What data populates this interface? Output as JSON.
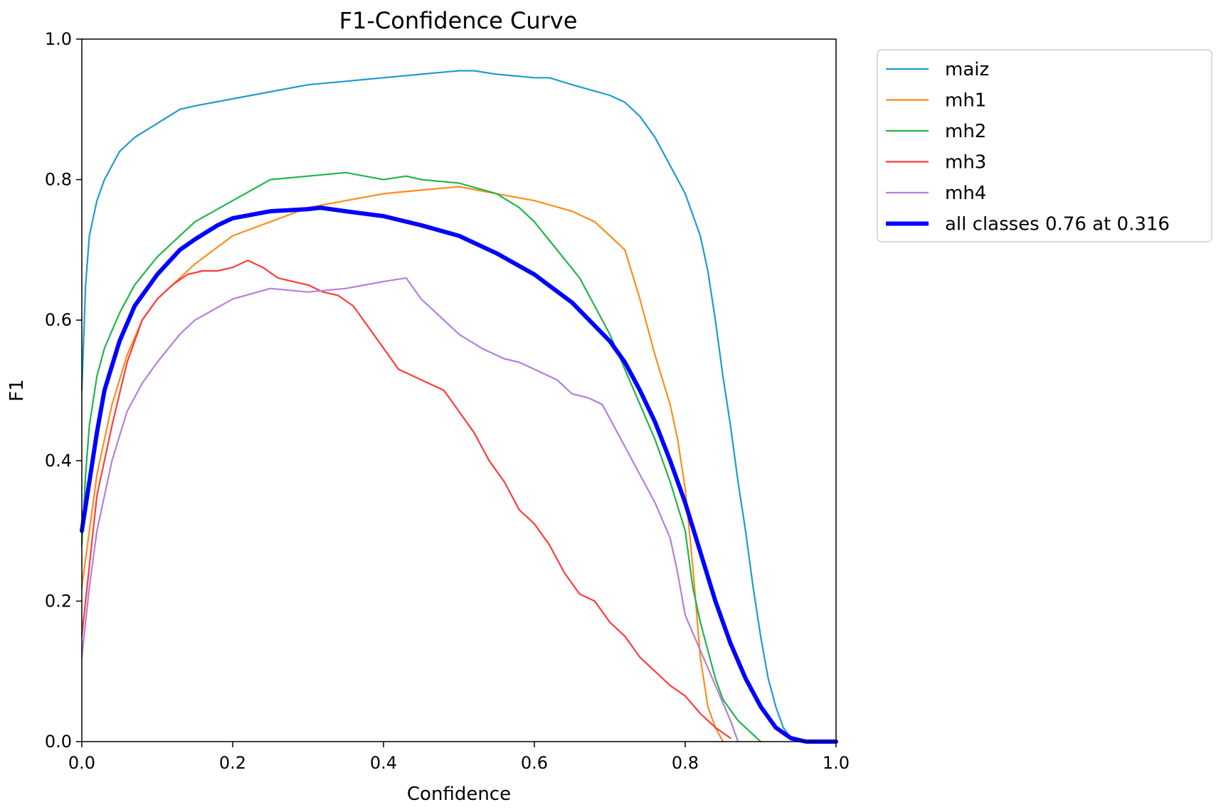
{
  "chart_data": {
    "type": "line",
    "title": "F1-Confidence Curve",
    "xlabel": "Confidence",
    "ylabel": "F1",
    "xlim": [
      0.0,
      1.0
    ],
    "ylim": [
      0.0,
      1.0
    ],
    "xticks": [
      "0.0",
      "0.2",
      "0.4",
      "0.6",
      "0.8",
      "1.0"
    ],
    "yticks": [
      "0.0",
      "0.2",
      "0.4",
      "0.6",
      "0.8",
      "1.0"
    ],
    "grid": false,
    "legend_position": "outside-top-right",
    "series": [
      {
        "name": "maiz",
        "color": "#1f9bd0",
        "width": "thin",
        "points": [
          [
            0.0,
            0.5
          ],
          [
            0.005,
            0.65
          ],
          [
            0.01,
            0.72
          ],
          [
            0.02,
            0.77
          ],
          [
            0.03,
            0.8
          ],
          [
            0.05,
            0.84
          ],
          [
            0.07,
            0.86
          ],
          [
            0.1,
            0.88
          ],
          [
            0.13,
            0.9
          ],
          [
            0.15,
            0.905
          ],
          [
            0.2,
            0.915
          ],
          [
            0.25,
            0.925
          ],
          [
            0.3,
            0.935
          ],
          [
            0.35,
            0.94
          ],
          [
            0.4,
            0.945
          ],
          [
            0.45,
            0.95
          ],
          [
            0.5,
            0.955
          ],
          [
            0.52,
            0.955
          ],
          [
            0.55,
            0.95
          ],
          [
            0.6,
            0.945
          ],
          [
            0.62,
            0.945
          ],
          [
            0.65,
            0.935
          ],
          [
            0.7,
            0.92
          ],
          [
            0.72,
            0.91
          ],
          [
            0.74,
            0.89
          ],
          [
            0.76,
            0.86
          ],
          [
            0.78,
            0.82
          ],
          [
            0.8,
            0.78
          ],
          [
            0.82,
            0.72
          ],
          [
            0.83,
            0.67
          ],
          [
            0.84,
            0.6
          ],
          [
            0.85,
            0.52
          ],
          [
            0.86,
            0.45
          ],
          [
            0.87,
            0.37
          ],
          [
            0.88,
            0.3
          ],
          [
            0.89,
            0.22
          ],
          [
            0.9,
            0.15
          ],
          [
            0.91,
            0.09
          ],
          [
            0.92,
            0.05
          ],
          [
            0.93,
            0.02
          ],
          [
            0.94,
            0.005
          ],
          [
            0.95,
            0.0
          ],
          [
            1.0,
            0.0
          ]
        ]
      },
      {
        "name": "mh1",
        "color": "#ff8c1a",
        "width": "thin",
        "points": [
          [
            0.0,
            0.22
          ],
          [
            0.01,
            0.3
          ],
          [
            0.02,
            0.38
          ],
          [
            0.04,
            0.48
          ],
          [
            0.06,
            0.55
          ],
          [
            0.08,
            0.6
          ],
          [
            0.1,
            0.63
          ],
          [
            0.13,
            0.66
          ],
          [
            0.15,
            0.68
          ],
          [
            0.2,
            0.72
          ],
          [
            0.25,
            0.74
          ],
          [
            0.3,
            0.76
          ],
          [
            0.35,
            0.77
          ],
          [
            0.4,
            0.78
          ],
          [
            0.45,
            0.785
          ],
          [
            0.5,
            0.79
          ],
          [
            0.55,
            0.78
          ],
          [
            0.6,
            0.77
          ],
          [
            0.65,
            0.755
          ],
          [
            0.68,
            0.74
          ],
          [
            0.7,
            0.72
          ],
          [
            0.72,
            0.7
          ],
          [
            0.74,
            0.63
          ],
          [
            0.76,
            0.55
          ],
          [
            0.78,
            0.48
          ],
          [
            0.79,
            0.43
          ],
          [
            0.8,
            0.36
          ],
          [
            0.81,
            0.25
          ],
          [
            0.82,
            0.12
          ],
          [
            0.83,
            0.05
          ],
          [
            0.84,
            0.02
          ],
          [
            0.85,
            0.0
          ]
        ]
      },
      {
        "name": "mh2",
        "color": "#1fb54a",
        "width": "thin",
        "points": [
          [
            0.0,
            0.28
          ],
          [
            0.005,
            0.38
          ],
          [
            0.01,
            0.45
          ],
          [
            0.02,
            0.52
          ],
          [
            0.03,
            0.56
          ],
          [
            0.05,
            0.61
          ],
          [
            0.07,
            0.65
          ],
          [
            0.1,
            0.69
          ],
          [
            0.13,
            0.72
          ],
          [
            0.15,
            0.74
          ],
          [
            0.2,
            0.77
          ],
          [
            0.25,
            0.8
          ],
          [
            0.3,
            0.805
          ],
          [
            0.35,
            0.81
          ],
          [
            0.4,
            0.8
          ],
          [
            0.43,
            0.805
          ],
          [
            0.45,
            0.8
          ],
          [
            0.5,
            0.795
          ],
          [
            0.55,
            0.78
          ],
          [
            0.58,
            0.76
          ],
          [
            0.6,
            0.74
          ],
          [
            0.63,
            0.7
          ],
          [
            0.66,
            0.66
          ],
          [
            0.68,
            0.62
          ],
          [
            0.7,
            0.58
          ],
          [
            0.72,
            0.53
          ],
          [
            0.74,
            0.48
          ],
          [
            0.76,
            0.43
          ],
          [
            0.78,
            0.37
          ],
          [
            0.8,
            0.3
          ],
          [
            0.81,
            0.22
          ],
          [
            0.82,
            0.17
          ],
          [
            0.83,
            0.13
          ],
          [
            0.84,
            0.09
          ],
          [
            0.85,
            0.06
          ],
          [
            0.87,
            0.03
          ],
          [
            0.89,
            0.01
          ],
          [
            0.9,
            0.0
          ]
        ]
      },
      {
        "name": "mh3",
        "color": "#ff3b3b",
        "width": "thin",
        "points": [
          [
            0.0,
            0.15
          ],
          [
            0.01,
            0.25
          ],
          [
            0.02,
            0.35
          ],
          [
            0.04,
            0.45
          ],
          [
            0.06,
            0.54
          ],
          [
            0.08,
            0.6
          ],
          [
            0.1,
            0.63
          ],
          [
            0.12,
            0.65
          ],
          [
            0.14,
            0.665
          ],
          [
            0.16,
            0.67
          ],
          [
            0.18,
            0.67
          ],
          [
            0.2,
            0.675
          ],
          [
            0.22,
            0.685
          ],
          [
            0.24,
            0.675
          ],
          [
            0.26,
            0.66
          ],
          [
            0.28,
            0.655
          ],
          [
            0.3,
            0.65
          ],
          [
            0.32,
            0.64
          ],
          [
            0.34,
            0.635
          ],
          [
            0.36,
            0.62
          ],
          [
            0.38,
            0.59
          ],
          [
            0.4,
            0.56
          ],
          [
            0.42,
            0.53
          ],
          [
            0.44,
            0.52
          ],
          [
            0.46,
            0.51
          ],
          [
            0.48,
            0.5
          ],
          [
            0.5,
            0.47
          ],
          [
            0.52,
            0.44
          ],
          [
            0.54,
            0.4
          ],
          [
            0.56,
            0.37
          ],
          [
            0.58,
            0.33
          ],
          [
            0.6,
            0.31
          ],
          [
            0.62,
            0.28
          ],
          [
            0.64,
            0.24
          ],
          [
            0.66,
            0.21
          ],
          [
            0.68,
            0.2
          ],
          [
            0.7,
            0.17
          ],
          [
            0.72,
            0.15
          ],
          [
            0.74,
            0.12
          ],
          [
            0.76,
            0.1
          ],
          [
            0.78,
            0.08
          ],
          [
            0.8,
            0.065
          ],
          [
            0.82,
            0.04
          ],
          [
            0.84,
            0.02
          ],
          [
            0.86,
            0.005
          ]
        ]
      },
      {
        "name": "mh4",
        "color": "#b57edc",
        "width": "thin",
        "points": [
          [
            0.0,
            0.12
          ],
          [
            0.01,
            0.22
          ],
          [
            0.02,
            0.3
          ],
          [
            0.04,
            0.4
          ],
          [
            0.06,
            0.47
          ],
          [
            0.08,
            0.51
          ],
          [
            0.1,
            0.54
          ],
          [
            0.13,
            0.58
          ],
          [
            0.15,
            0.6
          ],
          [
            0.2,
            0.63
          ],
          [
            0.25,
            0.645
          ],
          [
            0.3,
            0.64
          ],
          [
            0.35,
            0.645
          ],
          [
            0.4,
            0.655
          ],
          [
            0.43,
            0.66
          ],
          [
            0.45,
            0.63
          ],
          [
            0.48,
            0.6
          ],
          [
            0.5,
            0.58
          ],
          [
            0.53,
            0.56
          ],
          [
            0.56,
            0.545
          ],
          [
            0.58,
            0.54
          ],
          [
            0.6,
            0.53
          ],
          [
            0.63,
            0.515
          ],
          [
            0.65,
            0.495
          ],
          [
            0.67,
            0.49
          ],
          [
            0.69,
            0.48
          ],
          [
            0.7,
            0.46
          ],
          [
            0.72,
            0.42
          ],
          [
            0.74,
            0.38
          ],
          [
            0.76,
            0.34
          ],
          [
            0.78,
            0.29
          ],
          [
            0.79,
            0.24
          ],
          [
            0.8,
            0.18
          ],
          [
            0.82,
            0.13
          ],
          [
            0.84,
            0.08
          ],
          [
            0.86,
            0.03
          ],
          [
            0.87,
            0.0
          ]
        ]
      },
      {
        "name": "all classes 0.76 at 0.316",
        "color": "#0000ff",
        "width": "thick",
        "points": [
          [
            0.0,
            0.3
          ],
          [
            0.01,
            0.37
          ],
          [
            0.02,
            0.44
          ],
          [
            0.03,
            0.5
          ],
          [
            0.05,
            0.57
          ],
          [
            0.07,
            0.62
          ],
          [
            0.1,
            0.665
          ],
          [
            0.13,
            0.7
          ],
          [
            0.15,
            0.715
          ],
          [
            0.18,
            0.735
          ],
          [
            0.2,
            0.745
          ],
          [
            0.25,
            0.755
          ],
          [
            0.3,
            0.758
          ],
          [
            0.316,
            0.76
          ],
          [
            0.35,
            0.755
          ],
          [
            0.4,
            0.748
          ],
          [
            0.45,
            0.735
          ],
          [
            0.5,
            0.72
          ],
          [
            0.55,
            0.695
          ],
          [
            0.6,
            0.665
          ],
          [
            0.65,
            0.625
          ],
          [
            0.7,
            0.57
          ],
          [
            0.72,
            0.54
          ],
          [
            0.74,
            0.5
          ],
          [
            0.76,
            0.455
          ],
          [
            0.78,
            0.4
          ],
          [
            0.8,
            0.34
          ],
          [
            0.82,
            0.27
          ],
          [
            0.84,
            0.2
          ],
          [
            0.86,
            0.14
          ],
          [
            0.88,
            0.09
          ],
          [
            0.9,
            0.05
          ],
          [
            0.92,
            0.02
          ],
          [
            0.94,
            0.005
          ],
          [
            0.96,
            0.0
          ],
          [
            1.0,
            0.0
          ]
        ]
      }
    ]
  }
}
